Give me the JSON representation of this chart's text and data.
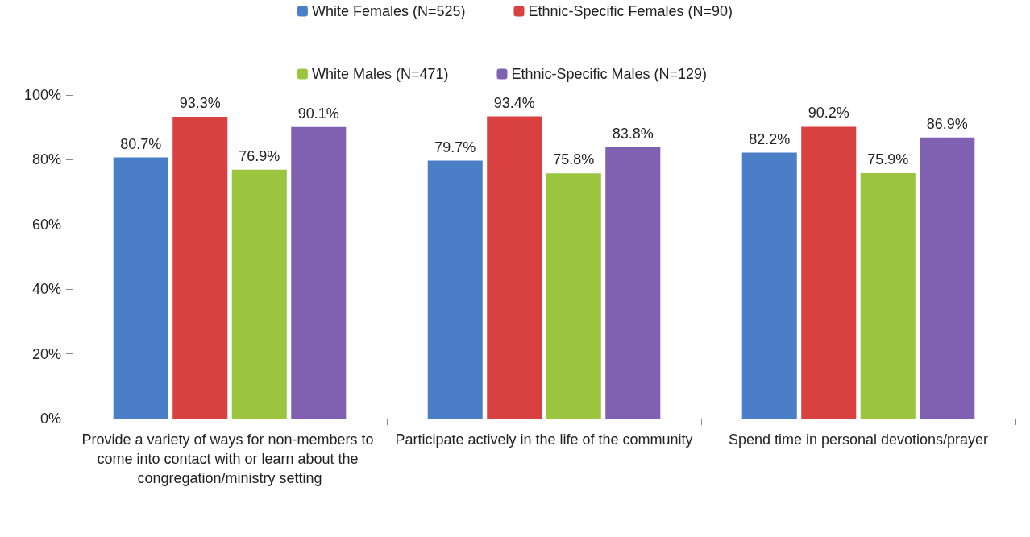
{
  "chart_data": {
    "type": "bar",
    "categories": [
      "Provide a variety of ways for non-members to come into contact with or learn about the congregation/ministry setting",
      "Participate actively in the life of the community",
      "Spend time in personal devotions/prayer"
    ],
    "series": [
      {
        "name": "White Females (N=525)",
        "color": "#4a7fc8",
        "values": [
          80.7,
          79.7,
          82.2
        ],
        "value_labels": [
          "80.7%",
          "79.7%",
          "82.2%"
        ]
      },
      {
        "name": "Ethnic-Specific Females (N=90)",
        "color": "#d94040",
        "values": [
          93.3,
          93.4,
          90.2
        ],
        "value_labels": [
          "93.3%",
          "93.4%",
          "90.2%"
        ]
      },
      {
        "name": "White Males (N=471)",
        "color": "#9bc43f",
        "values": [
          76.9,
          75.8,
          75.9
        ],
        "value_labels": [
          "76.9%",
          "75.8%",
          "75.9%"
        ]
      },
      {
        "name": "Ethnic-Specific Males (N=129)",
        "color": "#8060b0",
        "values": [
          90.1,
          83.8,
          86.9
        ],
        "value_labels": [
          "90.1%",
          "83.8%",
          "86.9%"
        ]
      }
    ],
    "ylim": [
      0,
      100
    ],
    "yticks": [
      {
        "value": 0,
        "label": "0%"
      },
      {
        "value": 20,
        "label": "20%"
      },
      {
        "value": 40,
        "label": "40%"
      },
      {
        "value": 60,
        "label": "60%"
      },
      {
        "value": 80,
        "label": "80%"
      },
      {
        "value": 100,
        "label": "100%"
      }
    ],
    "grid": false,
    "legend": "top"
  }
}
